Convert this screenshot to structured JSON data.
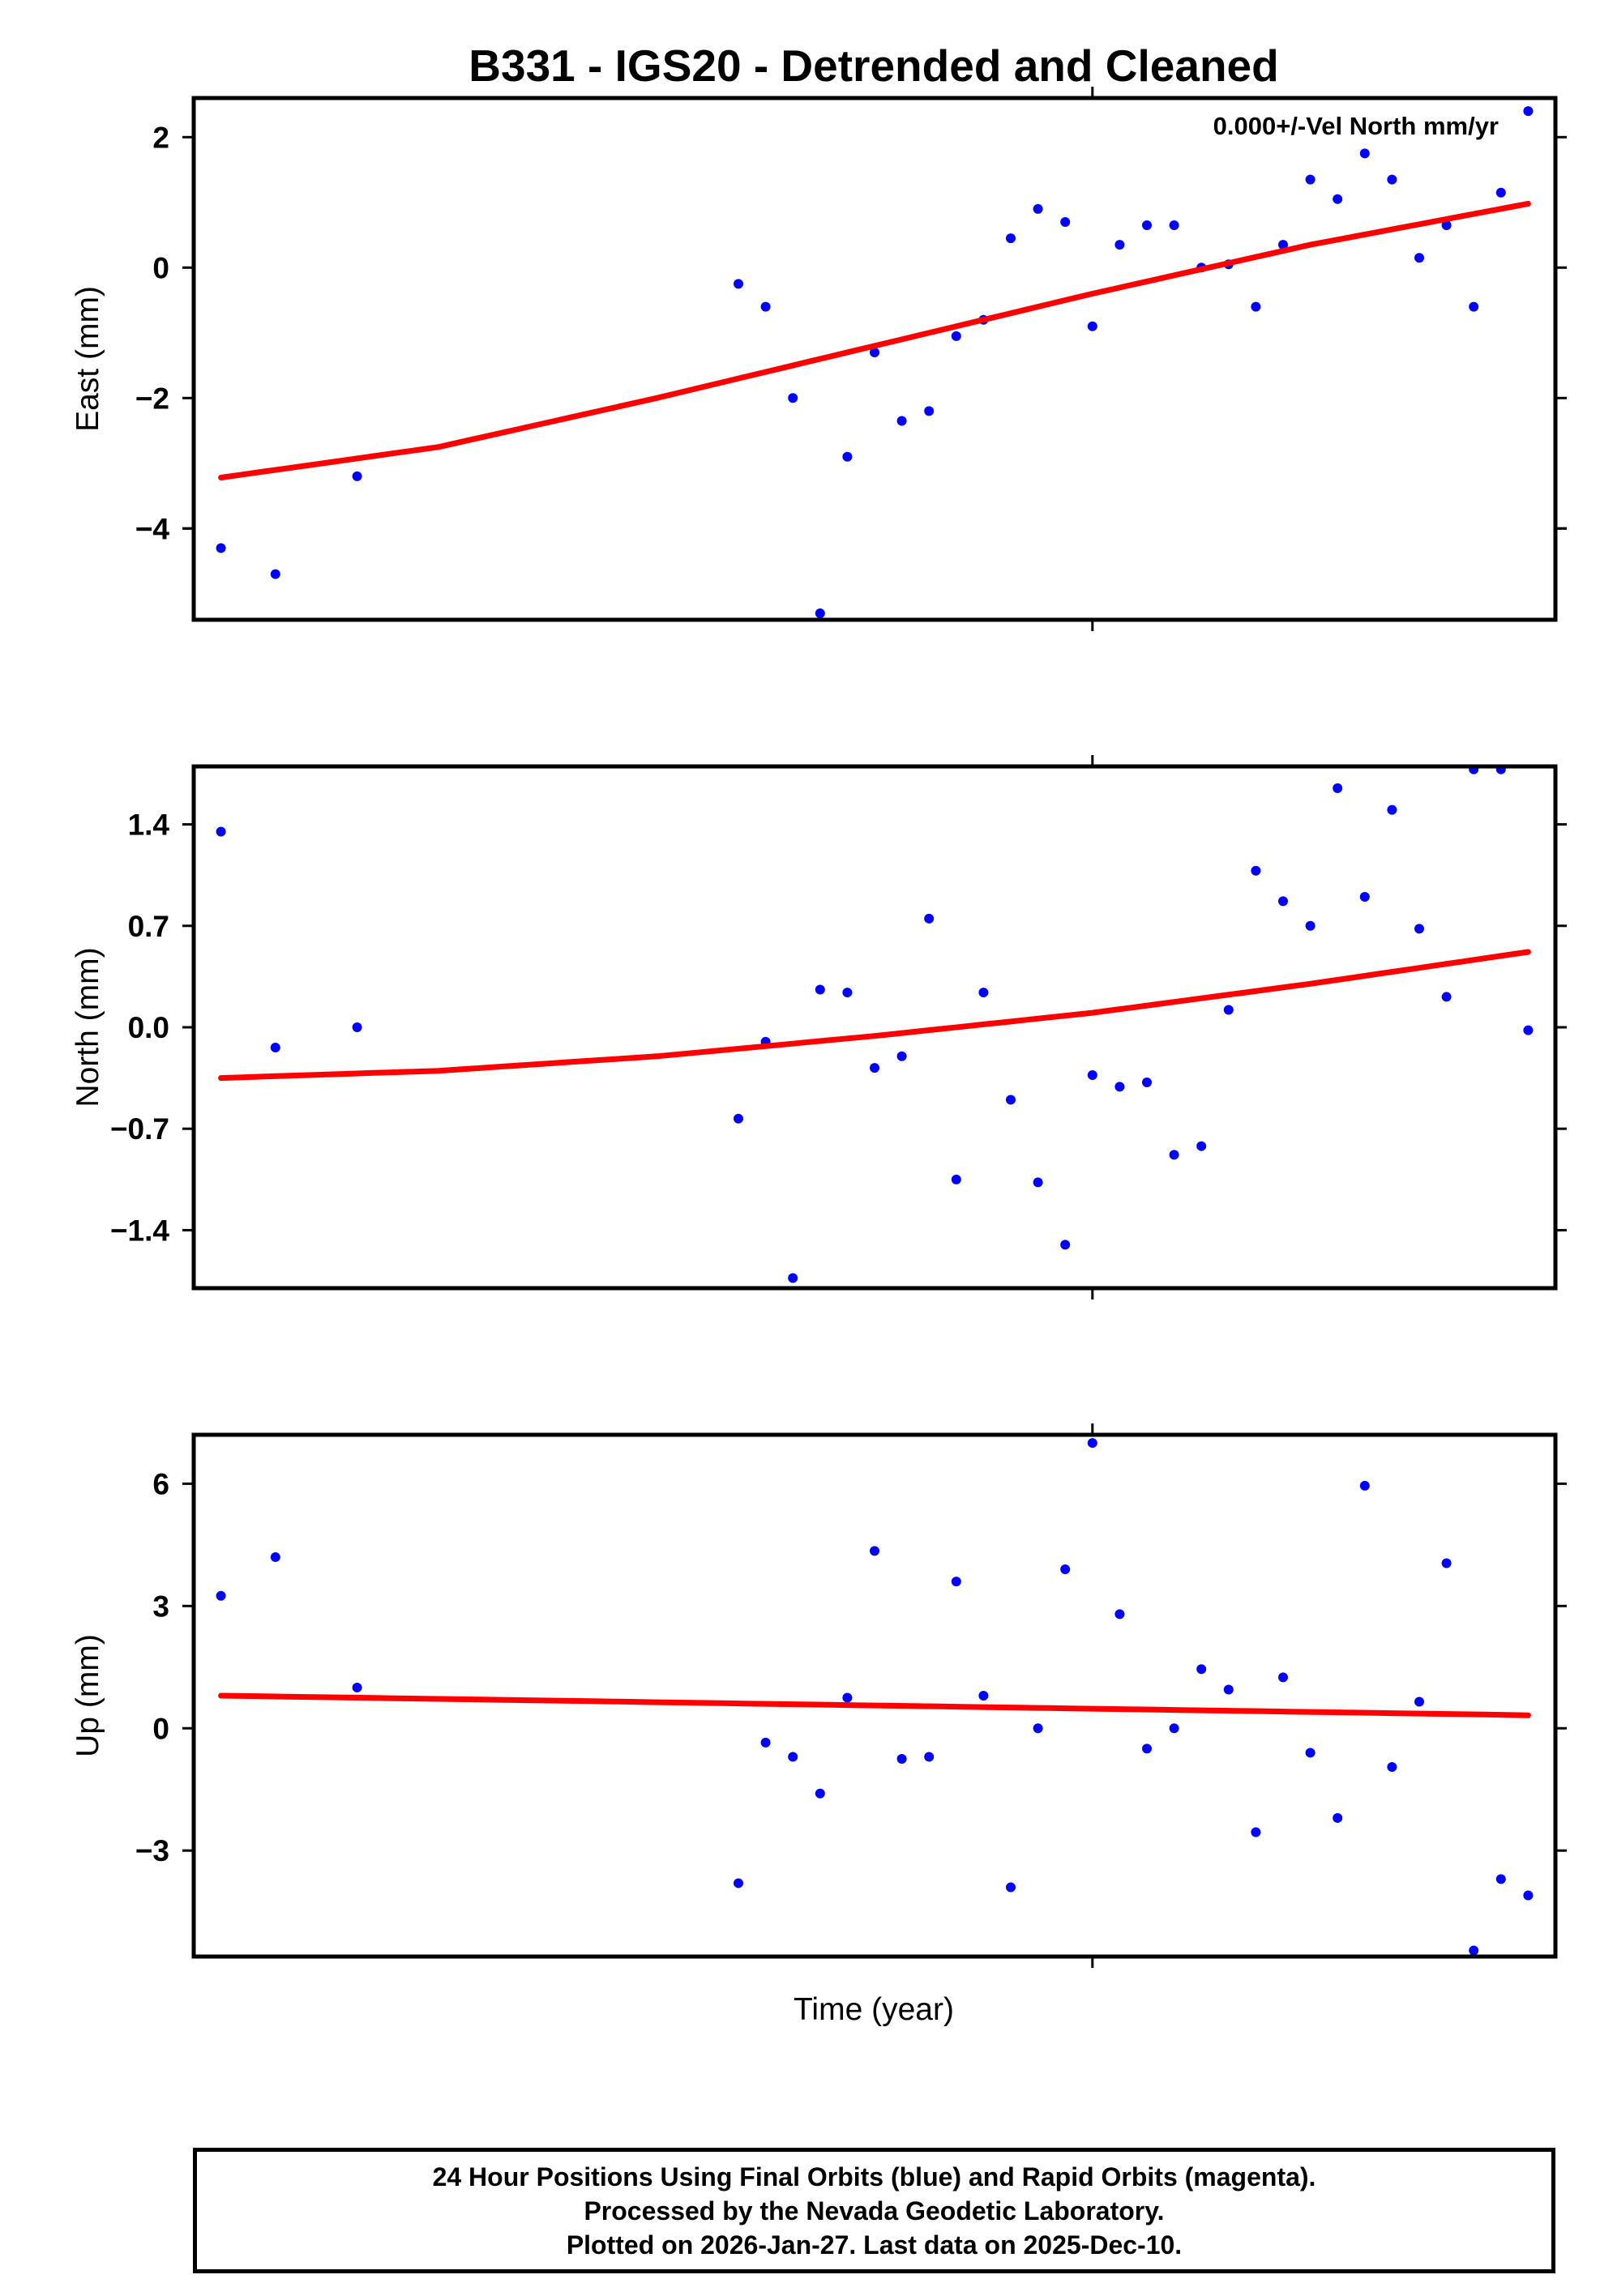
{
  "title": "B331 - IGS20 - Detrended and Cleaned",
  "xlabel": "Time (year)",
  "colors": {
    "final_orbit": "#0000ff",
    "fit_line": "#ff0000",
    "axis": "#000000"
  },
  "chart_data": [
    {
      "type": "scatter",
      "ylabel": "East (mm)",
      "ylim": [
        -5.4,
        2.6
      ],
      "yticks": [
        2,
        0,
        -4
      ],
      "yticks_minus_labels": [
        -2,
        -4
      ],
      "annotation": "0.000+/-Vel North mm/yr",
      "x": [
        0,
        2,
        5,
        19,
        20,
        21,
        22,
        23,
        24,
        25,
        26,
        27,
        28,
        29,
        30,
        31,
        32,
        33,
        34,
        35,
        36,
        37,
        38,
        39,
        40,
        41,
        42,
        43,
        44,
        45,
        46,
        47,
        48
      ],
      "values": [
        -4.3,
        -4.7,
        -3.2,
        -0.25,
        -0.6,
        -2.0,
        -5.3,
        -2.9,
        -1.3,
        -2.35,
        -2.2,
        -1.05,
        -0.8,
        0.45,
        0.9,
        0.7,
        -0.9,
        0.35,
        0.65,
        0.65,
        0.0,
        0.05,
        -0.6,
        0.35,
        1.35,
        1.05,
        1.75,
        1.35,
        0.15,
        0.65,
        -0.6,
        1.15,
        2.4
      ],
      "fit": {
        "x": [
          0,
          8,
          16,
          24,
          32,
          40,
          48
        ],
        "y": [
          -3.22,
          -2.75,
          -2.0,
          -1.2,
          -0.4,
          0.35,
          0.98
        ]
      }
    },
    {
      "type": "scatter",
      "ylabel": "North (mm)",
      "ylim": [
        -1.8,
        1.8
      ],
      "yticks": [
        1.4,
        0.7,
        0.0,
        -0.7,
        -1.4
      ],
      "x": [
        0,
        2,
        5,
        19,
        20,
        21,
        22,
        23,
        24,
        25,
        26,
        27,
        28,
        29,
        30,
        31,
        32,
        33,
        34,
        35,
        36,
        37,
        38,
        39,
        40,
        41,
        42,
        43,
        44,
        45,
        46,
        47,
        48
      ],
      "values": [
        1.35,
        -0.14,
        0.0,
        -0.63,
        -0.1,
        -1.73,
        0.26,
        0.24,
        -0.28,
        -0.2,
        0.75,
        -1.05,
        0.24,
        -0.5,
        -1.07,
        -1.5,
        -0.33,
        -0.41,
        -0.38,
        -0.88,
        -0.82,
        0.12,
        1.08,
        0.87,
        0.7,
        1.65,
        0.9,
        1.5,
        0.68,
        0.21,
        1.78,
        1.78,
        -0.02
      ],
      "fit": {
        "x": [
          0,
          8,
          16,
          24,
          32,
          40,
          48
        ],
        "y": [
          -0.35,
          -0.3,
          -0.2,
          -0.06,
          0.1,
          0.3,
          0.52
        ]
      }
    },
    {
      "type": "scatter",
      "ylabel": "Up (mm)",
      "ylim": [
        -5.6,
        7.2
      ],
      "yticks": [
        6,
        3,
        0
      ],
      "yticks_minus_labels": [
        -3
      ],
      "x": [
        0,
        2,
        5,
        19,
        20,
        21,
        22,
        23,
        24,
        25,
        26,
        27,
        28,
        29,
        30,
        31,
        32,
        33,
        34,
        35,
        36,
        37,
        38,
        39,
        40,
        41,
        42,
        43,
        44,
        45,
        46,
        47,
        48
      ],
      "values": [
        3.25,
        4.2,
        1.0,
        -3.8,
        -0.35,
        -0.7,
        -1.6,
        0.75,
        4.35,
        -0.75,
        -0.7,
        3.6,
        0.8,
        -3.9,
        0.0,
        3.9,
        7.0,
        2.8,
        -0.5,
        0.0,
        1.45,
        0.95,
        -2.55,
        1.25,
        -0.6,
        -2.2,
        5.95,
        -0.95,
        0.65,
        4.05,
        -5.45,
        -3.7,
        -4.1
      ],
      "fit": {
        "x": [
          0,
          48
        ],
        "y": [
          0.8,
          0.32
        ]
      }
    }
  ],
  "footer": {
    "line1": "24 Hour Positions Using Final Orbits (blue) and Rapid Orbits (magenta).",
    "line2": "Processed by the Nevada Geodetic Laboratory.",
    "line3": "Plotted on 2026-Jan-27. Last data on 2025-Dec-10."
  }
}
